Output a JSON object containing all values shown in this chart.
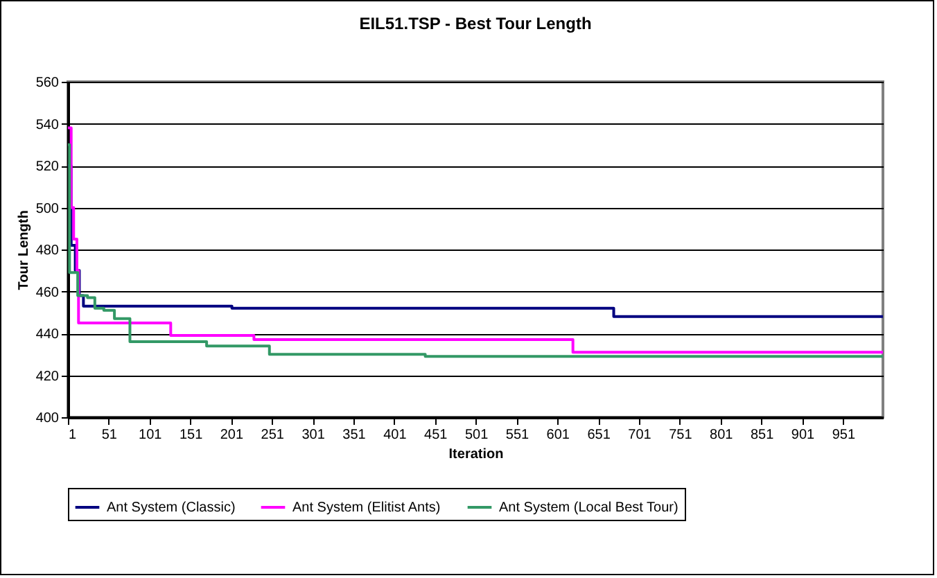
{
  "chart_data": {
    "type": "step",
    "title": "EIL51.TSP - Best Tour Length",
    "xlabel": "Iteration",
    "ylabel": "Tour Length",
    "xlim": [
      1,
      1000
    ],
    "xticks": [
      1,
      51,
      101,
      151,
      201,
      251,
      301,
      351,
      401,
      451,
      501,
      551,
      601,
      651,
      701,
      751,
      801,
      851,
      901,
      951
    ],
    "ylim": [
      400,
      560
    ],
    "yticks": [
      400,
      420,
      440,
      460,
      480,
      500,
      520,
      540,
      560
    ],
    "grid": "y",
    "legend": "bottom",
    "series": [
      {
        "name": "Ant System (Classic)",
        "color": "#000080",
        "x": [
          1,
          5,
          10,
          15,
          20,
          202,
          670,
          1000
        ],
        "values": [
          520,
          482,
          470,
          458,
          453,
          452,
          448,
          448
        ]
      },
      {
        "name": "Ant System (Elitist Ants)",
        "color": "#ff00ff",
        "x": [
          1,
          5,
          8,
          12,
          14,
          127,
          229,
          620,
          1000
        ],
        "values": [
          538,
          500,
          485,
          470,
          445,
          439,
          437,
          431,
          431
        ]
      },
      {
        "name": "Ant System (Local Best Tour)",
        "color": "#339966",
        "x": [
          1,
          3,
          13,
          25,
          34,
          45,
          58,
          77,
          171,
          248,
          439,
          1000
        ],
        "values": [
          530,
          469,
          458,
          457,
          452,
          451,
          447,
          436,
          434,
          430,
          429,
          429
        ]
      }
    ]
  }
}
